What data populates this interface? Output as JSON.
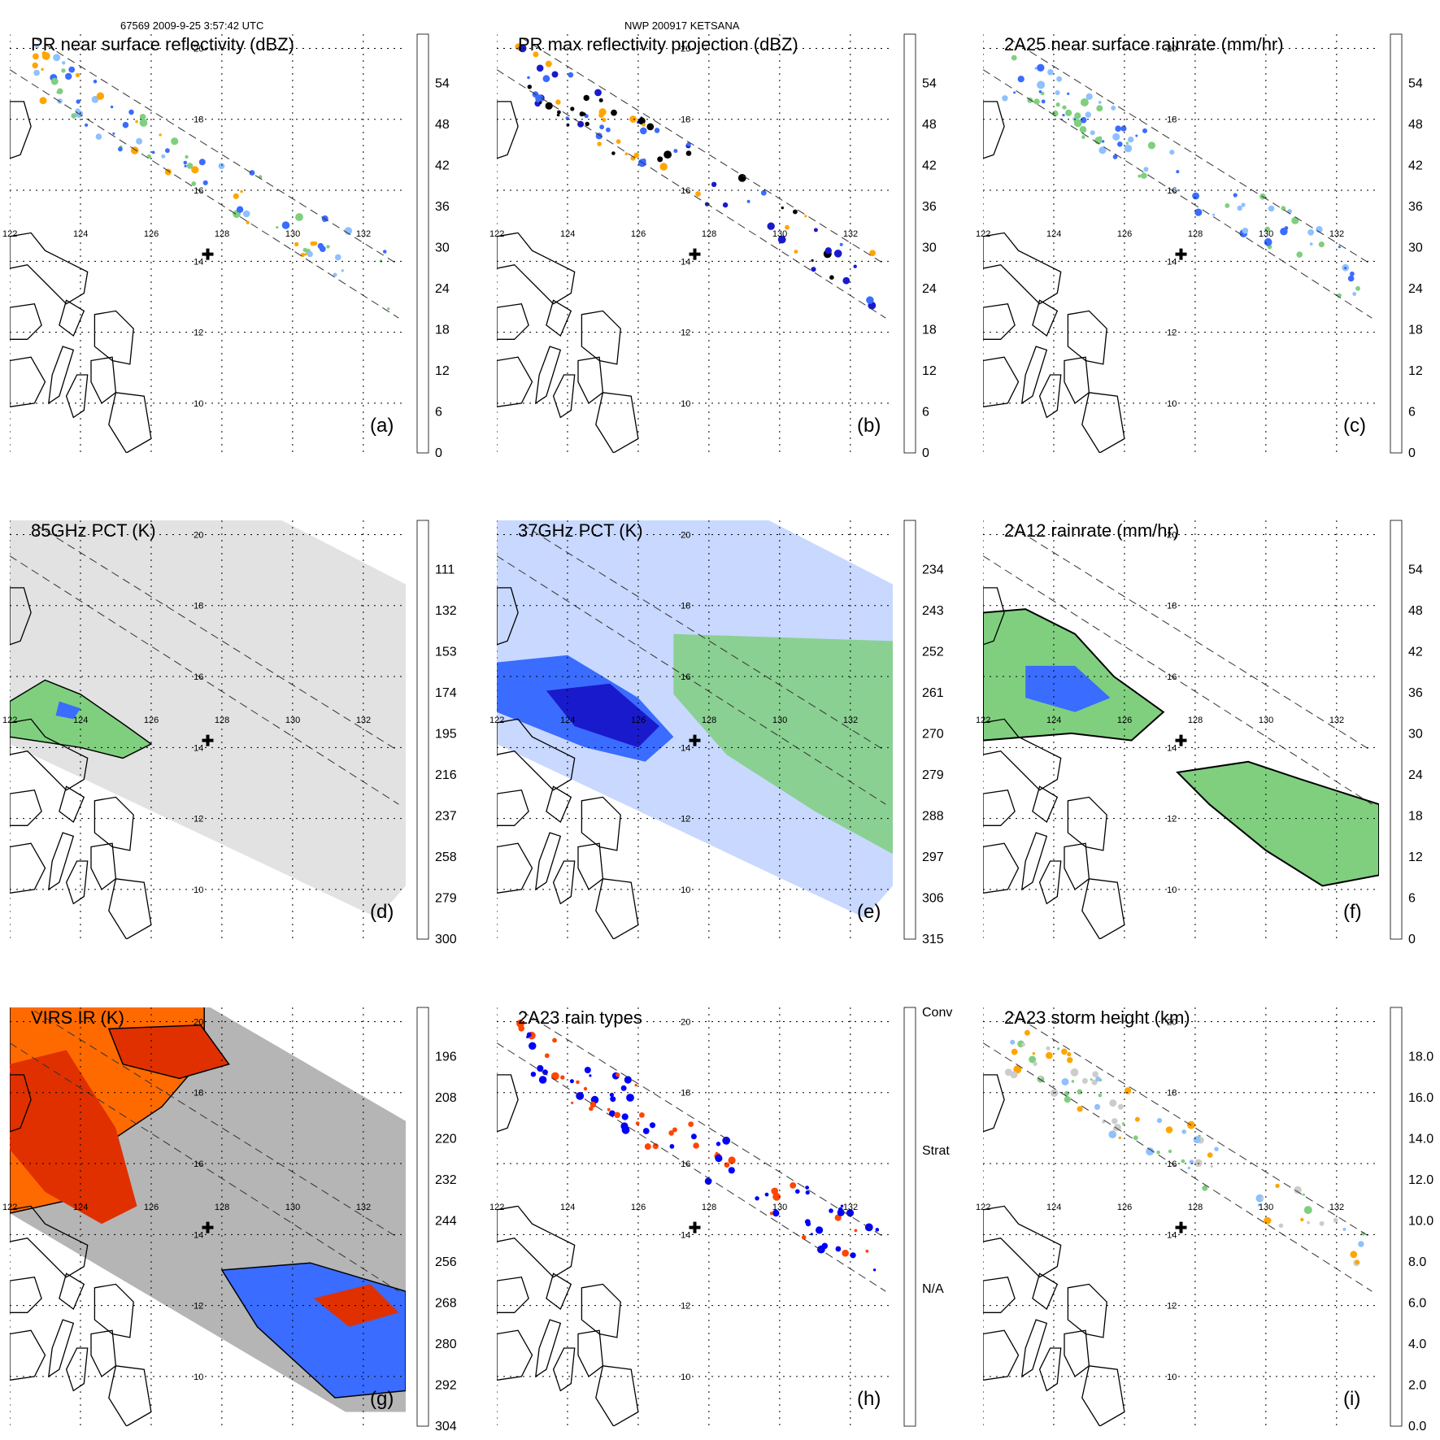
{
  "header": {
    "orbit_info": "67569 2009-9-25 3:57:42 UTC",
    "storm_info": "NWP 200917 KETSANA"
  },
  "lat_labels": [
    "20",
    "18",
    "16",
    "14",
    "12",
    "10"
  ],
  "lon_labels": [
    "122",
    "124",
    "126",
    "128",
    "130",
    "132"
  ],
  "panels": [
    {
      "id": "a",
      "title": "PR near surface reflectivity (dBZ)",
      "tag": "(a)",
      "cbar": [
        "0",
        "6",
        "12",
        "18",
        "24",
        "30",
        "36",
        "42",
        "48",
        "54"
      ],
      "colors": [
        "#ffffff",
        "#d9d9d9",
        "#aaaaaa",
        "#7fcf7f",
        "#8fc0ff",
        "#3a6cff",
        "#1a1acd",
        "#ffe000",
        "#ffa500",
        "#ff6a00",
        "#e03000",
        "#b00000",
        "#5a1a1a"
      ]
    },
    {
      "id": "b",
      "title": "PR max reflectivity projection (dBZ)",
      "tag": "(b)",
      "cbar": [
        "0",
        "6",
        "12",
        "18",
        "24",
        "30",
        "36",
        "42",
        "48",
        "54"
      ],
      "colors": [
        "#ffffff",
        "#d9d9d9",
        "#aaaaaa",
        "#7fcf7f",
        "#8fc0ff",
        "#3a6cff",
        "#1a1acd",
        "#ffe000",
        "#ffa500",
        "#ff6a00",
        "#e03000",
        "#b00000",
        "#5a1a1a"
      ]
    },
    {
      "id": "c",
      "title": "2A25 near surface rainrate (mm/hr)",
      "tag": "(c)",
      "cbar": [
        "0",
        "6",
        "12",
        "18",
        "24",
        "30",
        "36",
        "42",
        "48",
        "54"
      ],
      "colors": [
        "#7fcf7f",
        "#c8d8ff",
        "#8fc0ff",
        "#3a6cff",
        "#1a1acd",
        "#ffe000",
        "#ffa500",
        "#ff6a00",
        "#e03000",
        "#b00000",
        "#5a1a1a"
      ]
    },
    {
      "id": "d",
      "title": "85GHz PCT (K)",
      "tag": "(d)",
      "cbar": [
        "300",
        "279",
        "258",
        "237",
        "216",
        "195",
        "174",
        "153",
        "132",
        "111"
      ],
      "colors": [
        "#ffffff",
        "#d9d9d9",
        "#aaaaaa",
        "#7fcf7f",
        "#8fc0ff",
        "#3a6cff",
        "#1a1acd",
        "#ffe000",
        "#ffa500",
        "#ff6a00",
        "#e03000",
        "#b00000",
        "#5a1a1a"
      ]
    },
    {
      "id": "e",
      "title": "37GHz PCT (K)",
      "tag": "(e)",
      "cbar": [
        "315",
        "306",
        "297",
        "288",
        "279",
        "270",
        "261",
        "252",
        "243",
        "234"
      ],
      "colors": [
        "#ffffff",
        "#d9d9d9",
        "#aaaaaa",
        "#7fcf7f",
        "#8fc0ff",
        "#3a6cff",
        "#1a1acd",
        "#ffe000",
        "#ffa500",
        "#ff6a00",
        "#e03000",
        "#b00000",
        "#5a1a1a"
      ]
    },
    {
      "id": "f",
      "title": "2A12 rainrate (mm/hr)",
      "tag": "(f)",
      "cbar": [
        "0",
        "6",
        "12",
        "18",
        "24",
        "30",
        "36",
        "42",
        "48",
        "54"
      ],
      "colors": [
        "#7fcf7f",
        "#c8d8ff",
        "#8fc0ff",
        "#3a6cff",
        "#1a1acd",
        "#ffe000",
        "#ffa500",
        "#ff6a00",
        "#e03000",
        "#b00000",
        "#5a1a1a"
      ]
    },
    {
      "id": "g",
      "title": "VIRS IR (K)",
      "tag": "(g)",
      "cbar": [
        "304",
        "292",
        "280",
        "268",
        "256",
        "244",
        "232",
        "220",
        "208",
        "196"
      ],
      "colors": [
        "#ffffff",
        "#d9d9d9",
        "#aaaaaa",
        "#7fcf7f",
        "#8fc0ff",
        "#3a6cff",
        "#1a1acd",
        "#ffe000",
        "#ffa500",
        "#ff6a00",
        "#e03000",
        "#b00000",
        "#5a1a1a"
      ]
    },
    {
      "id": "h",
      "title": "2A23 rain types",
      "tag": "(h)",
      "cbar": [
        "N/A",
        "Strat",
        "Conv"
      ],
      "colors": [
        "#ffffff",
        "#0000ff",
        "#ff4500"
      ]
    },
    {
      "id": "i",
      "title": "2A23 storm height (km)",
      "tag": "(i)",
      "cbar": [
        "0.0",
        "2.0",
        "4.0",
        "6.0",
        "8.0",
        "10.0",
        "12.0",
        "14.0",
        "16.0",
        "18.0"
      ],
      "colors": [
        "#ffffff",
        "#d9d9d9",
        "#aaaaaa",
        "#7fcf7f",
        "#8fc0ff",
        "#3a6cff",
        "#1a1acd",
        "#ffe000",
        "#ffa500",
        "#ff6a00",
        "#e03000",
        "#b00000",
        "#5a1a1a"
      ]
    }
  ]
}
